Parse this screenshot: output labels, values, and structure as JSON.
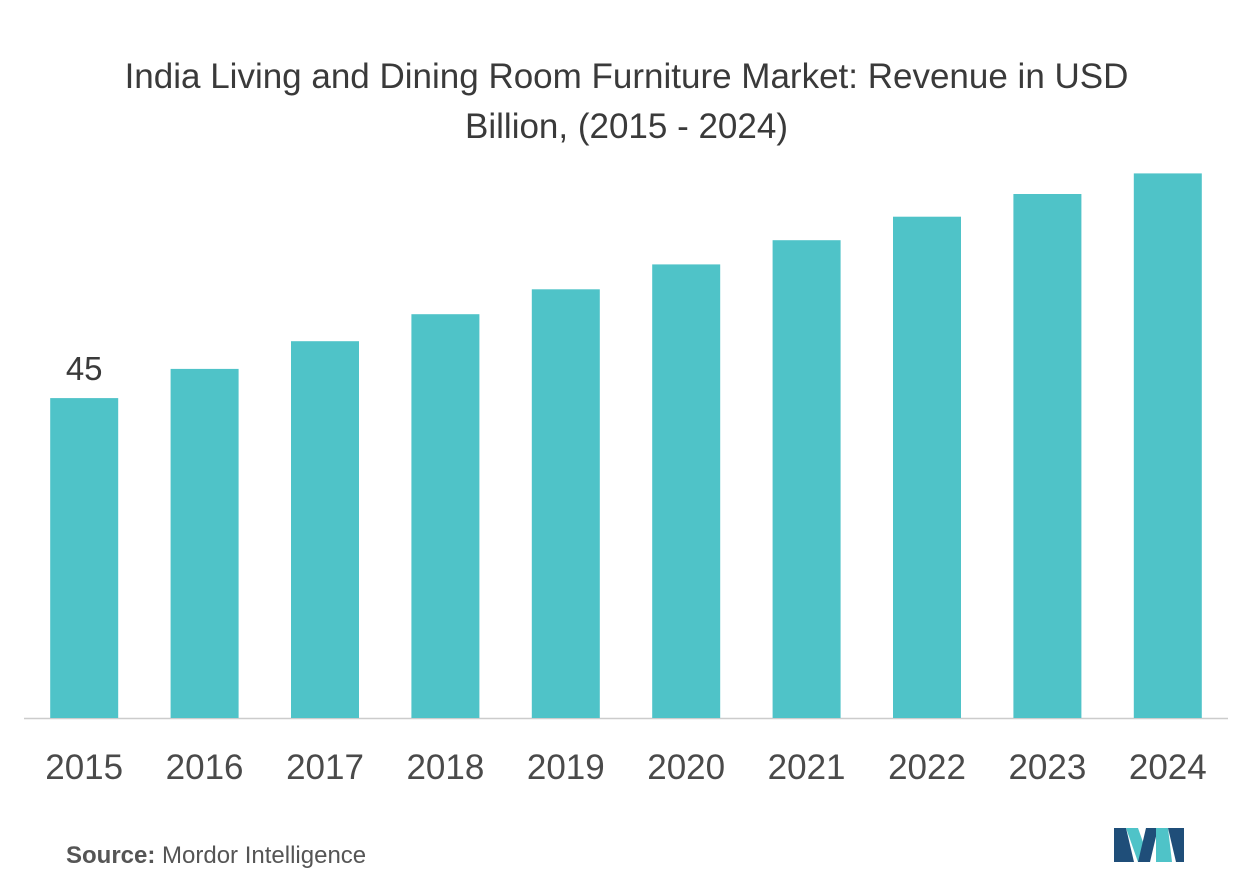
{
  "chart_data": {
    "type": "bar",
    "title": "India Living and Dining Room Furniture Market: Revenue in USD Billion, (2015 - 2024)",
    "xlabel": "",
    "ylabel": "",
    "categories": [
      "2015",
      "2016",
      "2017",
      "2018",
      "2019",
      "2020",
      "2021",
      "2022",
      "2023",
      "2024"
    ],
    "values": [
      45,
      49.1,
      53,
      56.8,
      60.3,
      63.8,
      67.2,
      70.5,
      73.7,
      76.6
    ],
    "data_labels": [
      "45",
      "",
      "",
      "",
      "",
      "",
      "",
      "",
      "",
      ""
    ],
    "ylim": [
      0,
      80
    ],
    "grid": false,
    "legend": "none",
    "bar_color": "#4fc3c8",
    "axis_color": "#cccccc"
  },
  "source": {
    "label": "Source:",
    "text": "Mordor Intelligence"
  },
  "logo": {
    "icon": "mordor-intelligence-logo-icon",
    "colors": [
      "#1f4e79",
      "#4fc3c8"
    ]
  }
}
